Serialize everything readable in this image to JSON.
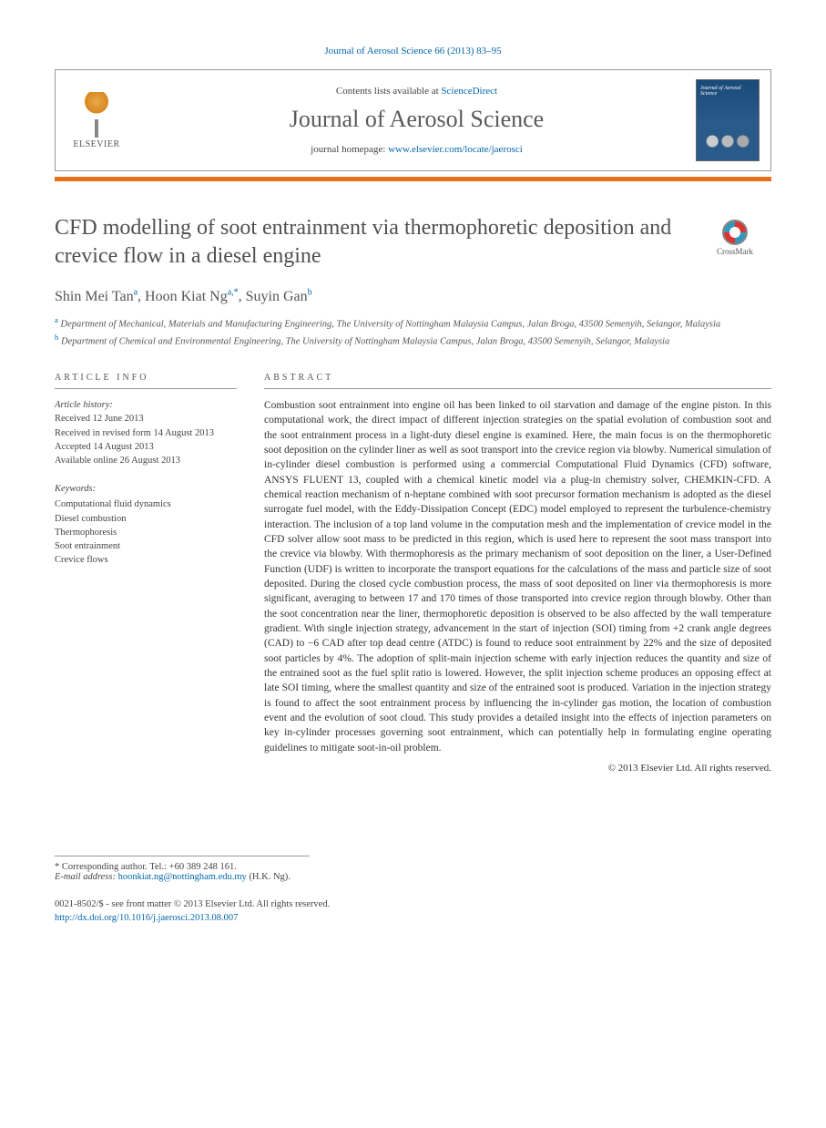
{
  "journal_citation": "Journal of Aerosol Science 66 (2013) 83–95",
  "header": {
    "contents_prefix": "Contents lists available at ",
    "contents_link": "ScienceDirect",
    "journal_name": "Journal of Aerosol Science",
    "homepage_prefix": "journal homepage: ",
    "homepage_url": "www.elsevier.com/locate/jaerosci",
    "publisher_logo_text": "ELSEVIER",
    "cover_caption": "Journal of Aerosol Science"
  },
  "crossmark_label": "CrossMark",
  "title": "CFD modelling of soot entrainment via thermophoretic deposition and crevice flow in a diesel engine",
  "authors": [
    {
      "name": "Shin Mei Tan",
      "aff": "a"
    },
    {
      "name": "Hoon Kiat Ng",
      "aff": "a,*"
    },
    {
      "name": "Suyin Gan",
      "aff": "b"
    }
  ],
  "affiliations": {
    "a": "Department of Mechanical, Materials and Manufacturing Engineering, The University of Nottingham Malaysia Campus, Jalan Broga, 43500 Semenyih, Selangor, Malaysia",
    "b": "Department of Chemical and Environmental Engineering, The University of Nottingham Malaysia Campus, Jalan Broga, 43500 Semenyih, Selangor, Malaysia"
  },
  "article_info": {
    "heading": "ARTICLE INFO",
    "history_label": "Article history:",
    "received": "Received 12 June 2013",
    "revised": "Received in revised form 14 August 2013",
    "accepted": "Accepted 14 August 2013",
    "online": "Available online 26 August 2013",
    "keywords_label": "Keywords:",
    "keywords": [
      "Computational fluid dynamics",
      "Diesel combustion",
      "Thermophoresis",
      "Soot entrainment",
      "Crevice flows"
    ]
  },
  "abstract": {
    "heading": "ABSTRACT",
    "text": "Combustion soot entrainment into engine oil has been linked to oil starvation and damage of the engine piston. In this computational work, the direct impact of different injection strategies on the spatial evolution of combustion soot and the soot entrainment process in a light-duty diesel engine is examined. Here, the main focus is on the thermophoretic soot deposition on the cylinder liner as well as soot transport into the crevice region via blowby. Numerical simulation of in-cylinder diesel combustion is performed using a commercial Computational Fluid Dynamics (CFD) software, ANSYS FLUENT 13, coupled with a chemical kinetic model via a plug-in chemistry solver, CHEMKIN-CFD. A chemical reaction mechanism of n-heptane combined with soot precursor formation mechanism is adopted as the diesel surrogate fuel model, with the Eddy-Dissipation Concept (EDC) model employed to represent the turbulence-chemistry interaction. The inclusion of a top land volume in the computation mesh and the implementation of crevice model in the CFD solver allow soot mass to be predicted in this region, which is used here to represent the soot mass transport into the crevice via blowby. With thermophoresis as the primary mechanism of soot deposition on the liner, a User-Defined Function (UDF) is written to incorporate the transport equations for the calculations of the mass and particle size of soot deposited. During the closed cycle combustion process, the mass of soot deposited on liner via thermophoresis is more significant, averaging to between 17 and 170 times of those transported into crevice region through blowby. Other than the soot concentration near the liner, thermophoretic deposition is observed to be also affected by the wall temperature gradient. With single injection strategy, advancement in the start of injection (SOI) timing from +2 crank angle degrees (CAD) to −6 CAD after top dead centre (ATDC) is found to reduce soot entrainment by 22% and the size of deposited soot particles by 4%. The adoption of split-main injection scheme with early injection reduces the quantity and size of the entrained soot as the fuel split ratio is lowered. However, the split injection scheme produces an opposing effect at late SOI timing, where the smallest quantity and size of the entrained soot is produced. Variation in the injection strategy is found to affect the soot entrainment process by influencing the in-cylinder gas motion, the location of combustion event and the evolution of soot cloud. This study provides a detailed insight into the effects of injection parameters on key in-cylinder processes governing soot entrainment, which can potentially help in formulating engine operating guidelines to mitigate soot-in-oil problem."
  },
  "copyright": "© 2013 Elsevier Ltd. All rights reserved.",
  "footnote": {
    "corr": "* Corresponding author. Tel.: +60 389 248 161.",
    "email_label": "E-mail address: ",
    "email": "hoonkiat.ng@nottingham.edu.my",
    "email_name": " (H.K. Ng)."
  },
  "bottom": {
    "issn": "0021-8502/$ - see front matter © 2013 Elsevier Ltd. All rights reserved.",
    "doi": "http://dx.doi.org/10.1016/j.jaerosci.2013.08.007"
  },
  "colors": {
    "link": "#0066aa",
    "accent_bar": "#e8701a",
    "text": "#333333",
    "muted": "#555555",
    "border": "#999999"
  },
  "typography": {
    "title_fontsize_pt": 18,
    "journal_name_fontsize_pt": 20,
    "body_fontsize_pt": 9,
    "abstract_fontsize_pt": 8.5,
    "font_family": "Georgia, serif"
  }
}
